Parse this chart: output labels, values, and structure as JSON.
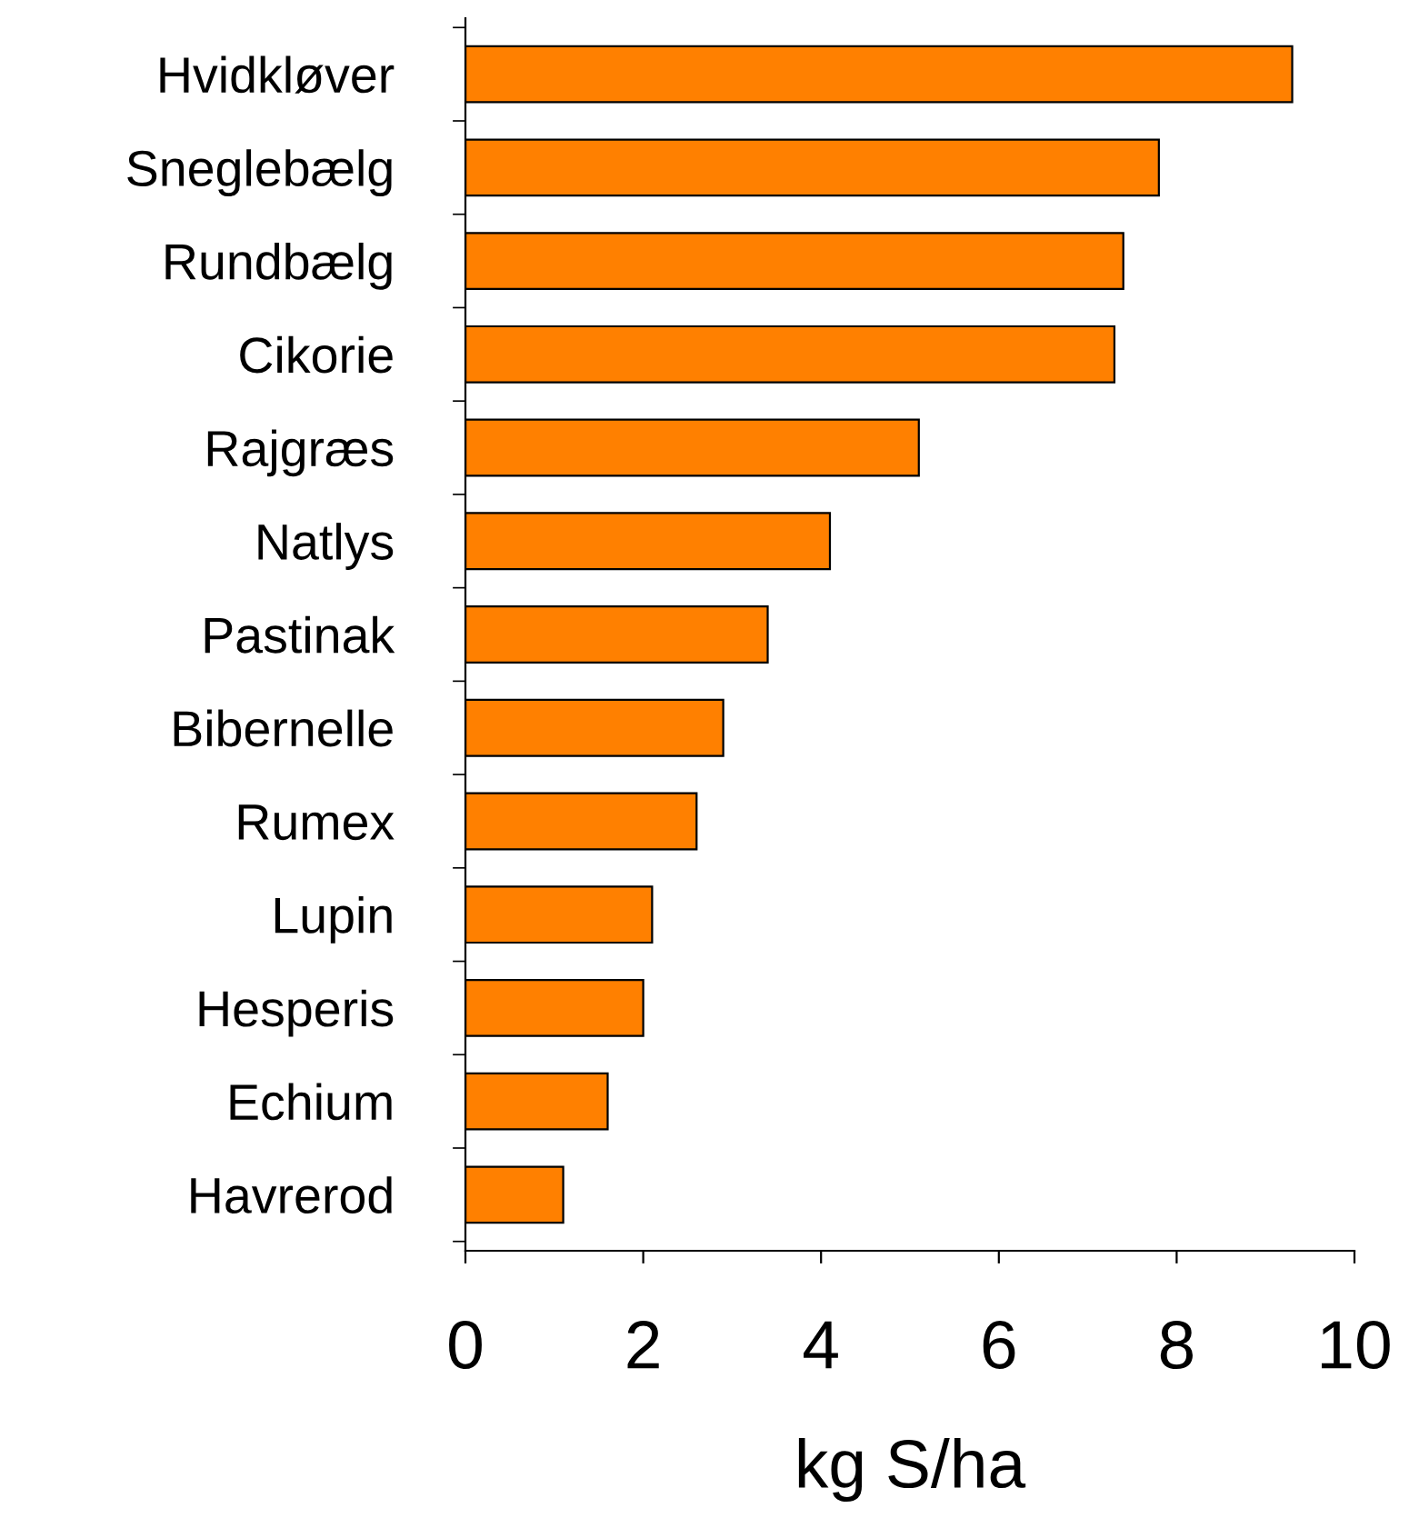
{
  "chart_data": {
    "type": "bar",
    "orientation": "horizontal",
    "xlabel": "kg S/ha",
    "categories": [
      "Hvidkløver",
      "Sneglebælg",
      "Rundbælg",
      "Cikorie",
      "Rajgræs",
      "Natlys",
      "Pastinak",
      "Bibernelle",
      "Rumex",
      "Lupin",
      "Hesperis",
      "Echium",
      "Havrerod"
    ],
    "values": [
      9.3,
      7.8,
      7.4,
      7.3,
      5.1,
      4.1,
      3.4,
      2.9,
      2.6,
      2.1,
      2.0,
      1.6,
      1.1
    ],
    "color": "#ff8000",
    "xlim": [
      0,
      10
    ],
    "xticks": [
      0,
      2,
      4,
      6,
      8,
      10
    ],
    "grid": false,
    "legend": false
  }
}
